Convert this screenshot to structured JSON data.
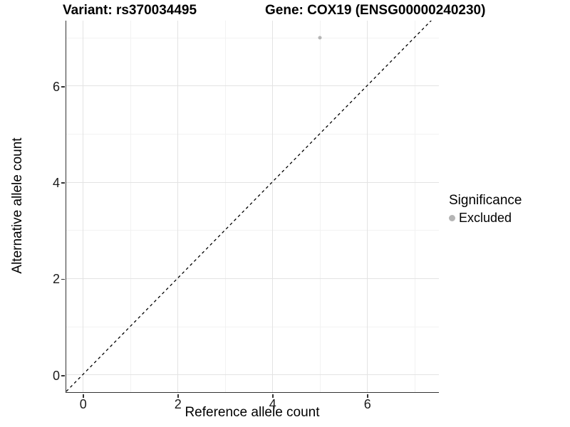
{
  "chart_data": {
    "type": "scatter",
    "title_left": "Variant: rs370034495",
    "title_right": "Gene: COX19 (ENSG00000240230)",
    "xlabel": "Reference allele count",
    "ylabel": "Alternative allele count",
    "xlim": [
      -0.35,
      7.5
    ],
    "ylim": [
      -0.35,
      7.35
    ],
    "x_ticks": [
      0,
      2,
      4,
      6
    ],
    "y_ticks": [
      0,
      2,
      4,
      6
    ],
    "x_minor": [
      1,
      3,
      5,
      7
    ],
    "y_minor": [
      1,
      3,
      5,
      7
    ],
    "grid": true,
    "series": [
      {
        "name": "Excluded",
        "color": "#b5b5b5",
        "points": [
          {
            "x": 5,
            "y": 7
          }
        ]
      }
    ],
    "reference_line": {
      "kind": "identity",
      "style": "dashed",
      "color": "#000000",
      "from": [
        -0.35,
        -0.35
      ],
      "to": [
        7.5,
        7.5
      ]
    },
    "legend": {
      "title": "Significance",
      "position": "right",
      "entries": [
        {
          "label": "Excluded",
          "color": "#b5b5b5",
          "marker": "circle"
        }
      ]
    }
  },
  "colors": {
    "background": "#ffffff",
    "grid_major": "#e3e3e3",
    "grid_minor": "#f2f2f2",
    "axis_line": "#333333",
    "tick_label": "#1a1a1a",
    "text": "#000000"
  }
}
